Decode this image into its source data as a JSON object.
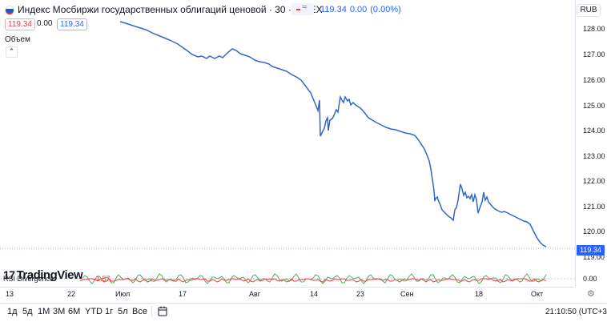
{
  "header": {
    "title": "Индекс Мосбиржи государственных облигаций ценовой · 30 · MOEX",
    "last": "119.34",
    "change": "0.00",
    "change_pct": "(0.00%)",
    "currency": "RUB",
    "bid": "119.34",
    "spread": "0.00",
    "ask": "119.34"
  },
  "volume_label": "Объем",
  "price_axis": {
    "ticks": [
      "128.00",
      "127.00",
      "126.00",
      "125.00",
      "124.00",
      "123.00",
      "122.00",
      "121.00",
      "120.00",
      "119.00"
    ],
    "last_price": "119.34"
  },
  "indicator": {
    "name": "RSI Divergence",
    "value": "-1.57",
    "zero_tick": "0.00"
  },
  "watermark": "TradingView",
  "time_axis": [
    "13",
    "22",
    "Июл",
    "17",
    "Авг",
    "14",
    "23",
    "Сен",
    "18",
    "Окт"
  ],
  "timeframes": [
    "1д",
    "5д",
    "1М",
    "3М",
    "6М",
    "YTD",
    "1г",
    "5л",
    "Все"
  ],
  "clock": "21:10:50 (UTC+3)",
  "colors": {
    "line": "#3366cc",
    "accent": "#2962ff",
    "negative": "#f23645",
    "positive": "#089981"
  },
  "icons": {
    "flag": "russia-flag-icon",
    "calendar": "calendar-icon",
    "settings": "gear-icon",
    "collapse": "chevron-up-icon"
  }
}
